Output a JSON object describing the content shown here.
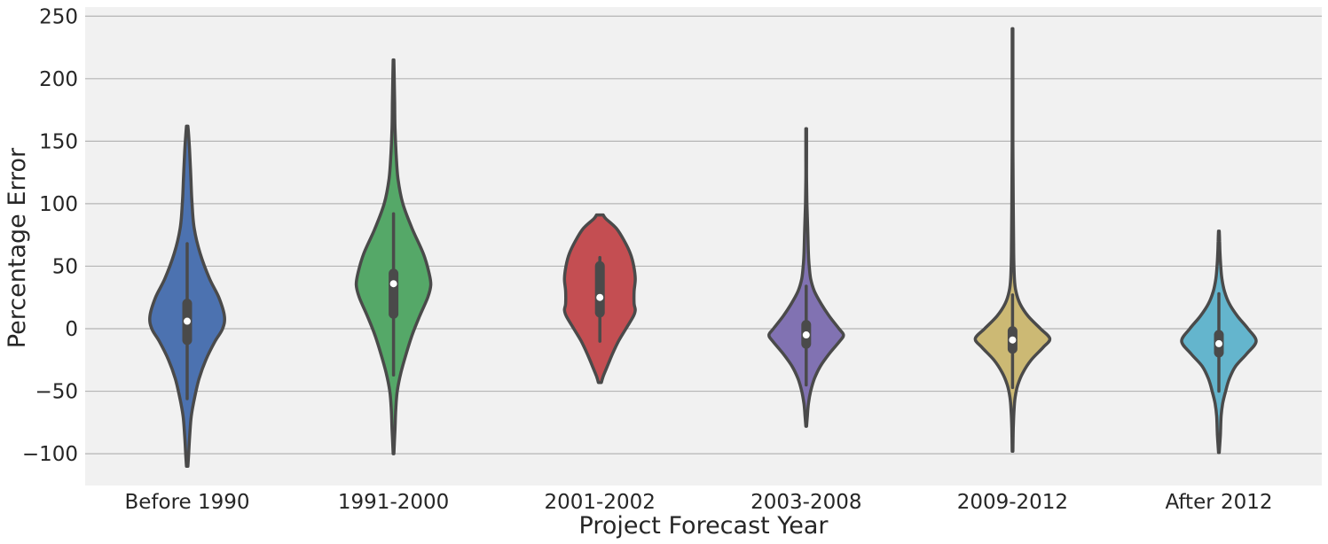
{
  "chart_data": {
    "type": "violin",
    "title": "",
    "xlabel": "Project Forecast Year",
    "ylabel": "Percentage Error",
    "ylim": [
      -127,
      258
    ],
    "yticks": [
      -100,
      -50,
      0,
      50,
      100,
      150,
      200,
      250
    ],
    "ytick_labels": [
      "−100",
      "−50",
      "0",
      "50",
      "100",
      "150",
      "200",
      "250"
    ],
    "grid": "horizontal",
    "categories": [
      "Before 1990",
      "1991-2000",
      "2001-2002",
      "2003-2008",
      "2009-2012",
      "After 2012"
    ],
    "series": [
      {
        "color": "#4c72b0",
        "min": -110,
        "q1": -13,
        "median": 6,
        "q3": 24,
        "max": 162,
        "whisker_low": -56,
        "whisker_high": 68,
        "profile": [
          [
            162,
            0.02
          ],
          [
            150,
            0.05
          ],
          [
            140,
            0.07
          ],
          [
            120,
            0.1
          ],
          [
            100,
            0.13
          ],
          [
            80,
            0.19
          ],
          [
            60,
            0.35
          ],
          [
            40,
            0.6
          ],
          [
            25,
            0.85
          ],
          [
            10,
            1.0
          ],
          [
            0,
            0.95
          ],
          [
            -10,
            0.75
          ],
          [
            -25,
            0.5
          ],
          [
            -40,
            0.32
          ],
          [
            -55,
            0.2
          ],
          [
            -70,
            0.11
          ],
          [
            -85,
            0.07
          ],
          [
            -100,
            0.04
          ],
          [
            -110,
            0.02
          ]
        ]
      },
      {
        "color": "#55a868",
        "min": -102,
        "q1": 8,
        "median": 36,
        "q3": 48,
        "max": 215,
        "whisker_low": -37,
        "whisker_high": 92,
        "profile": [
          [
            215,
            0.01
          ],
          [
            200,
            0.02
          ],
          [
            180,
            0.03
          ],
          [
            160,
            0.04
          ],
          [
            140,
            0.07
          ],
          [
            120,
            0.12
          ],
          [
            100,
            0.25
          ],
          [
            80,
            0.5
          ],
          [
            60,
            0.8
          ],
          [
            45,
            0.95
          ],
          [
            35,
            1.0
          ],
          [
            25,
            0.92
          ],
          [
            10,
            0.7
          ],
          [
            -5,
            0.5
          ],
          [
            -20,
            0.34
          ],
          [
            -35,
            0.2
          ],
          [
            -50,
            0.1
          ],
          [
            -65,
            0.06
          ],
          [
            -80,
            0.04
          ],
          [
            -100,
            0.01
          ]
        ]
      },
      {
        "color": "#c44e52",
        "min": -43,
        "q1": 9,
        "median": 25,
        "q3": 54,
        "max": 91,
        "whisker_low": -10,
        "whisker_high": 57,
        "profile": [
          [
            91,
            0.09
          ],
          [
            88,
            0.16
          ],
          [
            80,
            0.45
          ],
          [
            70,
            0.66
          ],
          [
            60,
            0.82
          ],
          [
            50,
            0.91
          ],
          [
            40,
            0.95
          ],
          [
            30,
            0.92
          ],
          [
            20,
            0.92
          ],
          [
            15,
            0.95
          ],
          [
            10,
            0.9
          ],
          [
            0,
            0.7
          ],
          [
            -10,
            0.5
          ],
          [
            -20,
            0.34
          ],
          [
            -30,
            0.2
          ],
          [
            -38,
            0.09
          ],
          [
            -43,
            0.04
          ]
        ]
      },
      {
        "color": "#8172b2",
        "min": -78,
        "q1": -16,
        "median": -5,
        "q3": 7,
        "max": 160,
        "whisker_low": -45,
        "whisker_high": 34,
        "profile": [
          [
            160,
            0.01
          ],
          [
            140,
            0.01
          ],
          [
            120,
            0.01
          ],
          [
            100,
            0.02
          ],
          [
            80,
            0.04
          ],
          [
            60,
            0.06
          ],
          [
            50,
            0.08
          ],
          [
            40,
            0.12
          ],
          [
            30,
            0.22
          ],
          [
            20,
            0.4
          ],
          [
            10,
            0.62
          ],
          [
            0,
            0.88
          ],
          [
            -5,
            1.0
          ],
          [
            -10,
            0.9
          ],
          [
            -20,
            0.62
          ],
          [
            -30,
            0.38
          ],
          [
            -40,
            0.22
          ],
          [
            -50,
            0.12
          ],
          [
            -60,
            0.06
          ],
          [
            -70,
            0.03
          ],
          [
            -78,
            0.01
          ]
        ]
      },
      {
        "color": "#ccb974",
        "min": -98,
        "q1": -20,
        "median": -9,
        "q3": 2,
        "max": 240,
        "whisker_low": -47,
        "whisker_high": 27,
        "profile": [
          [
            240,
            0.01
          ],
          [
            200,
            0.01
          ],
          [
            150,
            0.01
          ],
          [
            100,
            0.02
          ],
          [
            60,
            0.03
          ],
          [
            40,
            0.05
          ],
          [
            30,
            0.09
          ],
          [
            20,
            0.2
          ],
          [
            10,
            0.42
          ],
          [
            0,
            0.75
          ],
          [
            -8,
            1.0
          ],
          [
            -15,
            0.82
          ],
          [
            -25,
            0.5
          ],
          [
            -35,
            0.28
          ],
          [
            -45,
            0.14
          ],
          [
            -55,
            0.07
          ],
          [
            -65,
            0.04
          ],
          [
            -80,
            0.02
          ],
          [
            -98,
            0.01
          ]
        ]
      },
      {
        "color": "#64b5cd",
        "min": -99,
        "q1": -23,
        "median": -12,
        "q3": -1,
        "max": 78,
        "whisker_low": -50,
        "whisker_high": 28,
        "profile": [
          [
            78,
            0.01
          ],
          [
            70,
            0.02
          ],
          [
            60,
            0.03
          ],
          [
            50,
            0.05
          ],
          [
            40,
            0.08
          ],
          [
            30,
            0.15
          ],
          [
            20,
            0.28
          ],
          [
            10,
            0.5
          ],
          [
            0,
            0.78
          ],
          [
            -10,
            1.0
          ],
          [
            -20,
            0.75
          ],
          [
            -30,
            0.45
          ],
          [
            -40,
            0.28
          ],
          [
            -50,
            0.18
          ],
          [
            -60,
            0.1
          ],
          [
            -70,
            0.06
          ],
          [
            -85,
            0.04
          ],
          [
            -99,
            0.01
          ]
        ]
      }
    ]
  }
}
